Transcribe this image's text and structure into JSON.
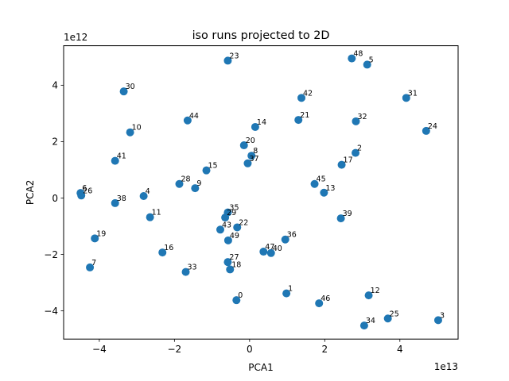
{
  "chart_data": {
    "type": "scatter",
    "title": "iso runs projected to 2D",
    "xlabel": "PCA1",
    "ylabel": "PCA2",
    "x_multiplier_label": "1e13",
    "y_multiplier_label": "1e12",
    "xlim": [
      -4.95,
      5.55
    ],
    "ylim": [
      -5.0,
      5.4
    ],
    "xticks": [
      -4,
      -2,
      0,
      2,
      4
    ],
    "yticks": [
      -4,
      -2,
      0,
      2,
      4
    ],
    "point_color": "#1f77b4",
    "points": [
      {
        "label": "0",
        "x": -0.35,
        "y": -3.62
      },
      {
        "label": "1",
        "x": 0.98,
        "y": -3.38
      },
      {
        "label": "2",
        "x": 2.82,
        "y": 1.6
      },
      {
        "label": "3",
        "x": 5.02,
        "y": -4.33
      },
      {
        "label": "4",
        "x": -2.82,
        "y": 0.07
      },
      {
        "label": "5",
        "x": 3.13,
        "y": 4.73
      },
      {
        "label": "6",
        "x": -4.5,
        "y": 0.18
      },
      {
        "label": "7",
        "x": -4.25,
        "y": -2.46
      },
      {
        "label": "8",
        "x": 0.05,
        "y": 1.5
      },
      {
        "label": "9",
        "x": -1.45,
        "y": 0.35
      },
      {
        "label": "10",
        "x": -3.18,
        "y": 2.33
      },
      {
        "label": "11",
        "x": -2.65,
        "y": -0.68
      },
      {
        "label": "12",
        "x": 3.17,
        "y": -3.45
      },
      {
        "label": "13",
        "x": 1.98,
        "y": 0.19
      },
      {
        "label": "14",
        "x": 0.15,
        "y": 2.52
      },
      {
        "label": "15",
        "x": -1.15,
        "y": 0.98
      },
      {
        "label": "16",
        "x": -2.32,
        "y": -1.93
      },
      {
        "label": "17",
        "x": 2.45,
        "y": 1.18
      },
      {
        "label": "18",
        "x": -0.52,
        "y": -2.53
      },
      {
        "label": "19",
        "x": -4.12,
        "y": -1.43
      },
      {
        "label": "20",
        "x": -0.15,
        "y": 1.87
      },
      {
        "label": "21",
        "x": 1.3,
        "y": 2.77
      },
      {
        "label": "22",
        "x": -0.33,
        "y": -1.04
      },
      {
        "label": "23",
        "x": -0.58,
        "y": 4.87
      },
      {
        "label": "24",
        "x": 4.7,
        "y": 2.38
      },
      {
        "label": "25",
        "x": 3.68,
        "y": -4.27
      },
      {
        "label": "26",
        "x": -4.48,
        "y": 0.09
      },
      {
        "label": "27",
        "x": -0.58,
        "y": -2.27
      },
      {
        "label": "28",
        "x": -1.87,
        "y": 0.5
      },
      {
        "label": "29",
        "x": -0.65,
        "y": -0.69
      },
      {
        "label": "30",
        "x": -3.35,
        "y": 3.78
      },
      {
        "label": "31",
        "x": 4.17,
        "y": 3.55
      },
      {
        "label": "32",
        "x": 2.83,
        "y": 2.72
      },
      {
        "label": "33",
        "x": -1.7,
        "y": -2.62
      },
      {
        "label": "34",
        "x": 3.05,
        "y": -4.52
      },
      {
        "label": "35",
        "x": -0.58,
        "y": -0.51
      },
      {
        "label": "36",
        "x": 0.95,
        "y": -1.47
      },
      {
        "label": "37",
        "x": -0.05,
        "y": 1.23
      },
      {
        "label": "38",
        "x": -3.58,
        "y": -0.18
      },
      {
        "label": "39",
        "x": 2.43,
        "y": -0.72
      },
      {
        "label": "40",
        "x": 0.57,
        "y": -1.95
      },
      {
        "label": "41",
        "x": -3.58,
        "y": 1.32
      },
      {
        "label": "42",
        "x": 1.38,
        "y": 3.55
      },
      {
        "label": "43",
        "x": -0.78,
        "y": -1.12
      },
      {
        "label": "44",
        "x": -1.65,
        "y": 2.75
      },
      {
        "label": "45",
        "x": 1.73,
        "y": 0.5
      },
      {
        "label": "46",
        "x": 1.85,
        "y": -3.73
      },
      {
        "label": "47",
        "x": 0.37,
        "y": -1.9
      },
      {
        "label": "48",
        "x": 2.72,
        "y": 4.95
      },
      {
        "label": "49",
        "x": -0.57,
        "y": -1.5
      }
    ]
  }
}
